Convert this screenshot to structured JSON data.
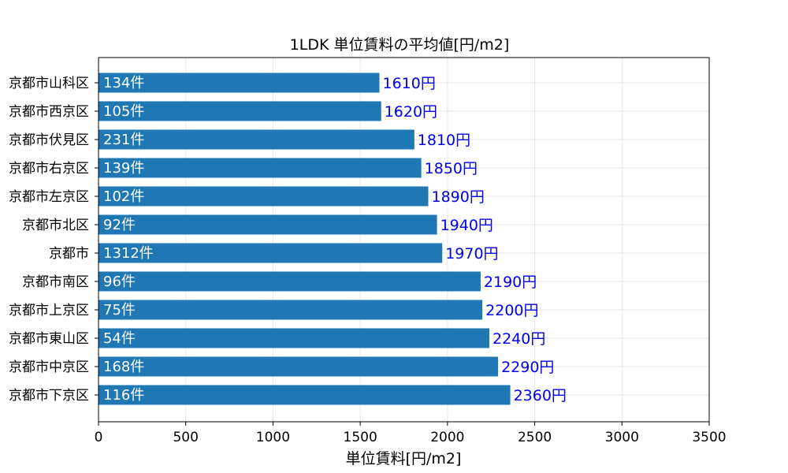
{
  "chart_data": {
    "type": "bar",
    "orientation": "horizontal",
    "title": "1LDK 単位賃料の平均値[円/m2]",
    "xlabel": "単位賃料[円/m2]",
    "ylabel": "",
    "xlim": [
      0,
      3500
    ],
    "xticks": [
      0,
      500,
      1000,
      1500,
      2000,
      2500,
      3000,
      3500
    ],
    "grid": true,
    "bar_color": "#1f77b4",
    "count_label_color": "#ffffff",
    "value_label_color": "#0000ee",
    "categories": [
      "京都市山科区",
      "京都市西京区",
      "京都市伏見区",
      "京都市右京区",
      "京都市左京区",
      "京都市北区",
      "京都市",
      "京都市南区",
      "京都市上京区",
      "京都市東山区",
      "京都市中京区",
      "京都市下京区"
    ],
    "values": [
      1610,
      1620,
      1810,
      1850,
      1890,
      1940,
      1970,
      2190,
      2200,
      2240,
      2290,
      2360
    ],
    "value_labels": [
      "1610円",
      "1620円",
      "1810円",
      "1850円",
      "1890円",
      "1940円",
      "1970円",
      "2190円",
      "2200円",
      "2240円",
      "2290円",
      "2360円"
    ],
    "count_labels": [
      "134件",
      "105件",
      "231件",
      "139件",
      "102件",
      "92件",
      "1312件",
      "96件",
      "75件",
      "54件",
      "168件",
      "116件"
    ]
  }
}
